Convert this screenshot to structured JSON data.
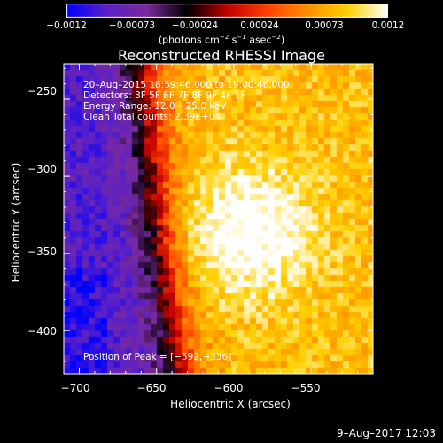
{
  "chart_data": {
    "type": "heatmap",
    "title": "Reconstructed RHESSI Image",
    "xlabel": "Heliocentric X (arcsec)",
    "ylabel": "Heliocentric Y (arcsec)",
    "xlim": [
      -710,
      -510
    ],
    "ylim": [
      -428,
      -227
    ],
    "xticks": [
      "−700",
      "−650",
      "−600",
      "−550"
    ],
    "xtick_values": [
      -700,
      -650,
      -600,
      -550
    ],
    "yticks": [
      "−250",
      "−300",
      "−350",
      "−400"
    ],
    "ytick_values": [
      -250,
      -300,
      -350,
      -400
    ],
    "colorbar": {
      "range": [
        -0.0012,
        0.0012
      ],
      "ticks": [
        "−0.0012",
        "−0.00073",
        "−0.00024",
        "0.00024",
        "0.00073",
        "0.0012"
      ],
      "tick_values": [
        -0.0012,
        -0.00073,
        -0.00024,
        0.00024,
        0.00073,
        0.0012
      ],
      "units_prefix": "(photons cm",
      "units_exp1": "−2",
      "units_mid": " s",
      "units_exp2": "−1",
      "units_mid2": " asec",
      "units_exp3": "−2",
      "units_suffix": ")",
      "colormap": [
        "#0000ff",
        "#5a20c8",
        "#7a2a9a",
        "#000000",
        "#c00000",
        "#ff4000",
        "#ff9000",
        "#ffd000",
        "#ffffff"
      ]
    },
    "annotations": [
      "20–Aug–2015 18:59:46.000 to 19:00:46.000",
      "Detectors: 3F 5F 6F 7F 8F 9F 4F 1F",
      "Energy Range: 12.0 – 25.0 keV",
      "Clean    Total counts: 2.39E+04"
    ],
    "peak_label": "Position of Peak = [−592,−336]",
    "peak": [
      -592,
      -336
    ],
    "structure": {
      "description_values_normalized": "value field approximated: low (blue/purple) toward x=-700, y=-380; steep rise near x=-640; high (yellow/white) for x>-610, peak near (-592,-336)"
    }
  },
  "footer": {
    "timestamp": "9–Aug–2017 12:03"
  }
}
